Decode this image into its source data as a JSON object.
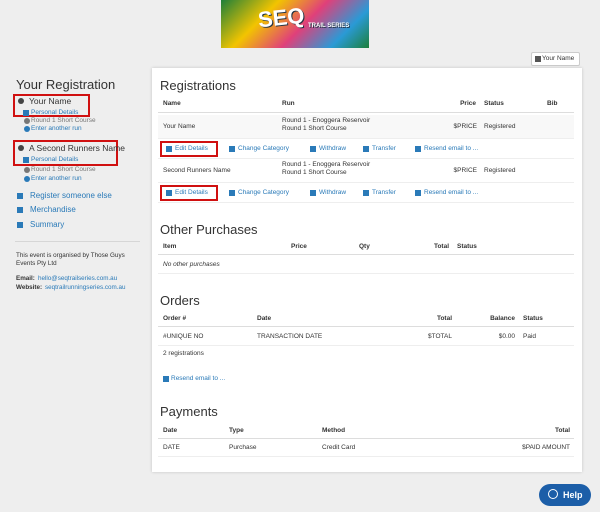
{
  "logo": {
    "title": "SEQ",
    "subtitle": "TRAIL SERIES"
  },
  "user_menu": "Your Name",
  "sidebar": {
    "title": "Your Registration",
    "registrants": [
      {
        "name": "Your Name",
        "details_link": "Personal Details",
        "run": "Round 1 Short Course",
        "add_run_link": "Enter another run"
      },
      {
        "name": "A Second Runners Name",
        "details_link": "Personal Details",
        "run": "Round 1 Short Course",
        "add_run_link": "Enter another run"
      }
    ],
    "nav": [
      "Register someone else",
      "Merchandise",
      "Summary"
    ],
    "organiser": "This event is organised by Those Guys Events Pty Ltd",
    "email_label": "Email:",
    "email": "hello@seqtrailseries.com.au",
    "website_label": "Website:",
    "website": "seqtrailrunningseries.com.au"
  },
  "registrations": {
    "title": "Registrations",
    "headers": [
      "Name",
      "Run",
      "Price",
      "Status",
      "Bib"
    ],
    "rows": [
      {
        "name": "Your Name",
        "run": [
          "Round 1 - Enoggera Reservoir",
          "Round 1 Short Course"
        ],
        "price": "$PRICE",
        "status": "Registered",
        "actions": [
          "Edit Details",
          "Change Category",
          "Withdraw",
          "Transfer",
          "Resend email to ..."
        ]
      },
      {
        "name": "Second Runners Name",
        "run": [
          "Round 1 - Enoggera Reservoir",
          "Round 1 Short Course"
        ],
        "price": "$PRICE",
        "status": "Registered",
        "actions": [
          "Edit Details",
          "Change Category",
          "Withdraw",
          "Transfer",
          "Resend email to ..."
        ]
      }
    ]
  },
  "other_purchases": {
    "title": "Other Purchases",
    "headers": [
      "Item",
      "Price",
      "Qty",
      "Total",
      "Status"
    ],
    "empty": "No other purchases"
  },
  "orders": {
    "title": "Orders",
    "headers": [
      "Order #",
      "Date",
      "Total",
      "Balance",
      "Status"
    ],
    "rows": [
      [
        "#UNIQUE NO",
        "TRANSACTION DATE",
        "$TOTAL",
        "$0.00",
        "Paid"
      ]
    ],
    "summary": "2 registrations",
    "resend_link": "Resend email to ..."
  },
  "payments": {
    "title": "Payments",
    "headers": [
      "Date",
      "Type",
      "Method",
      "Total"
    ],
    "rows": [
      [
        "DATE",
        "Purchase",
        "Credit Card",
        "$PAID AMOUNT"
      ]
    ]
  },
  "help_button": "Help"
}
